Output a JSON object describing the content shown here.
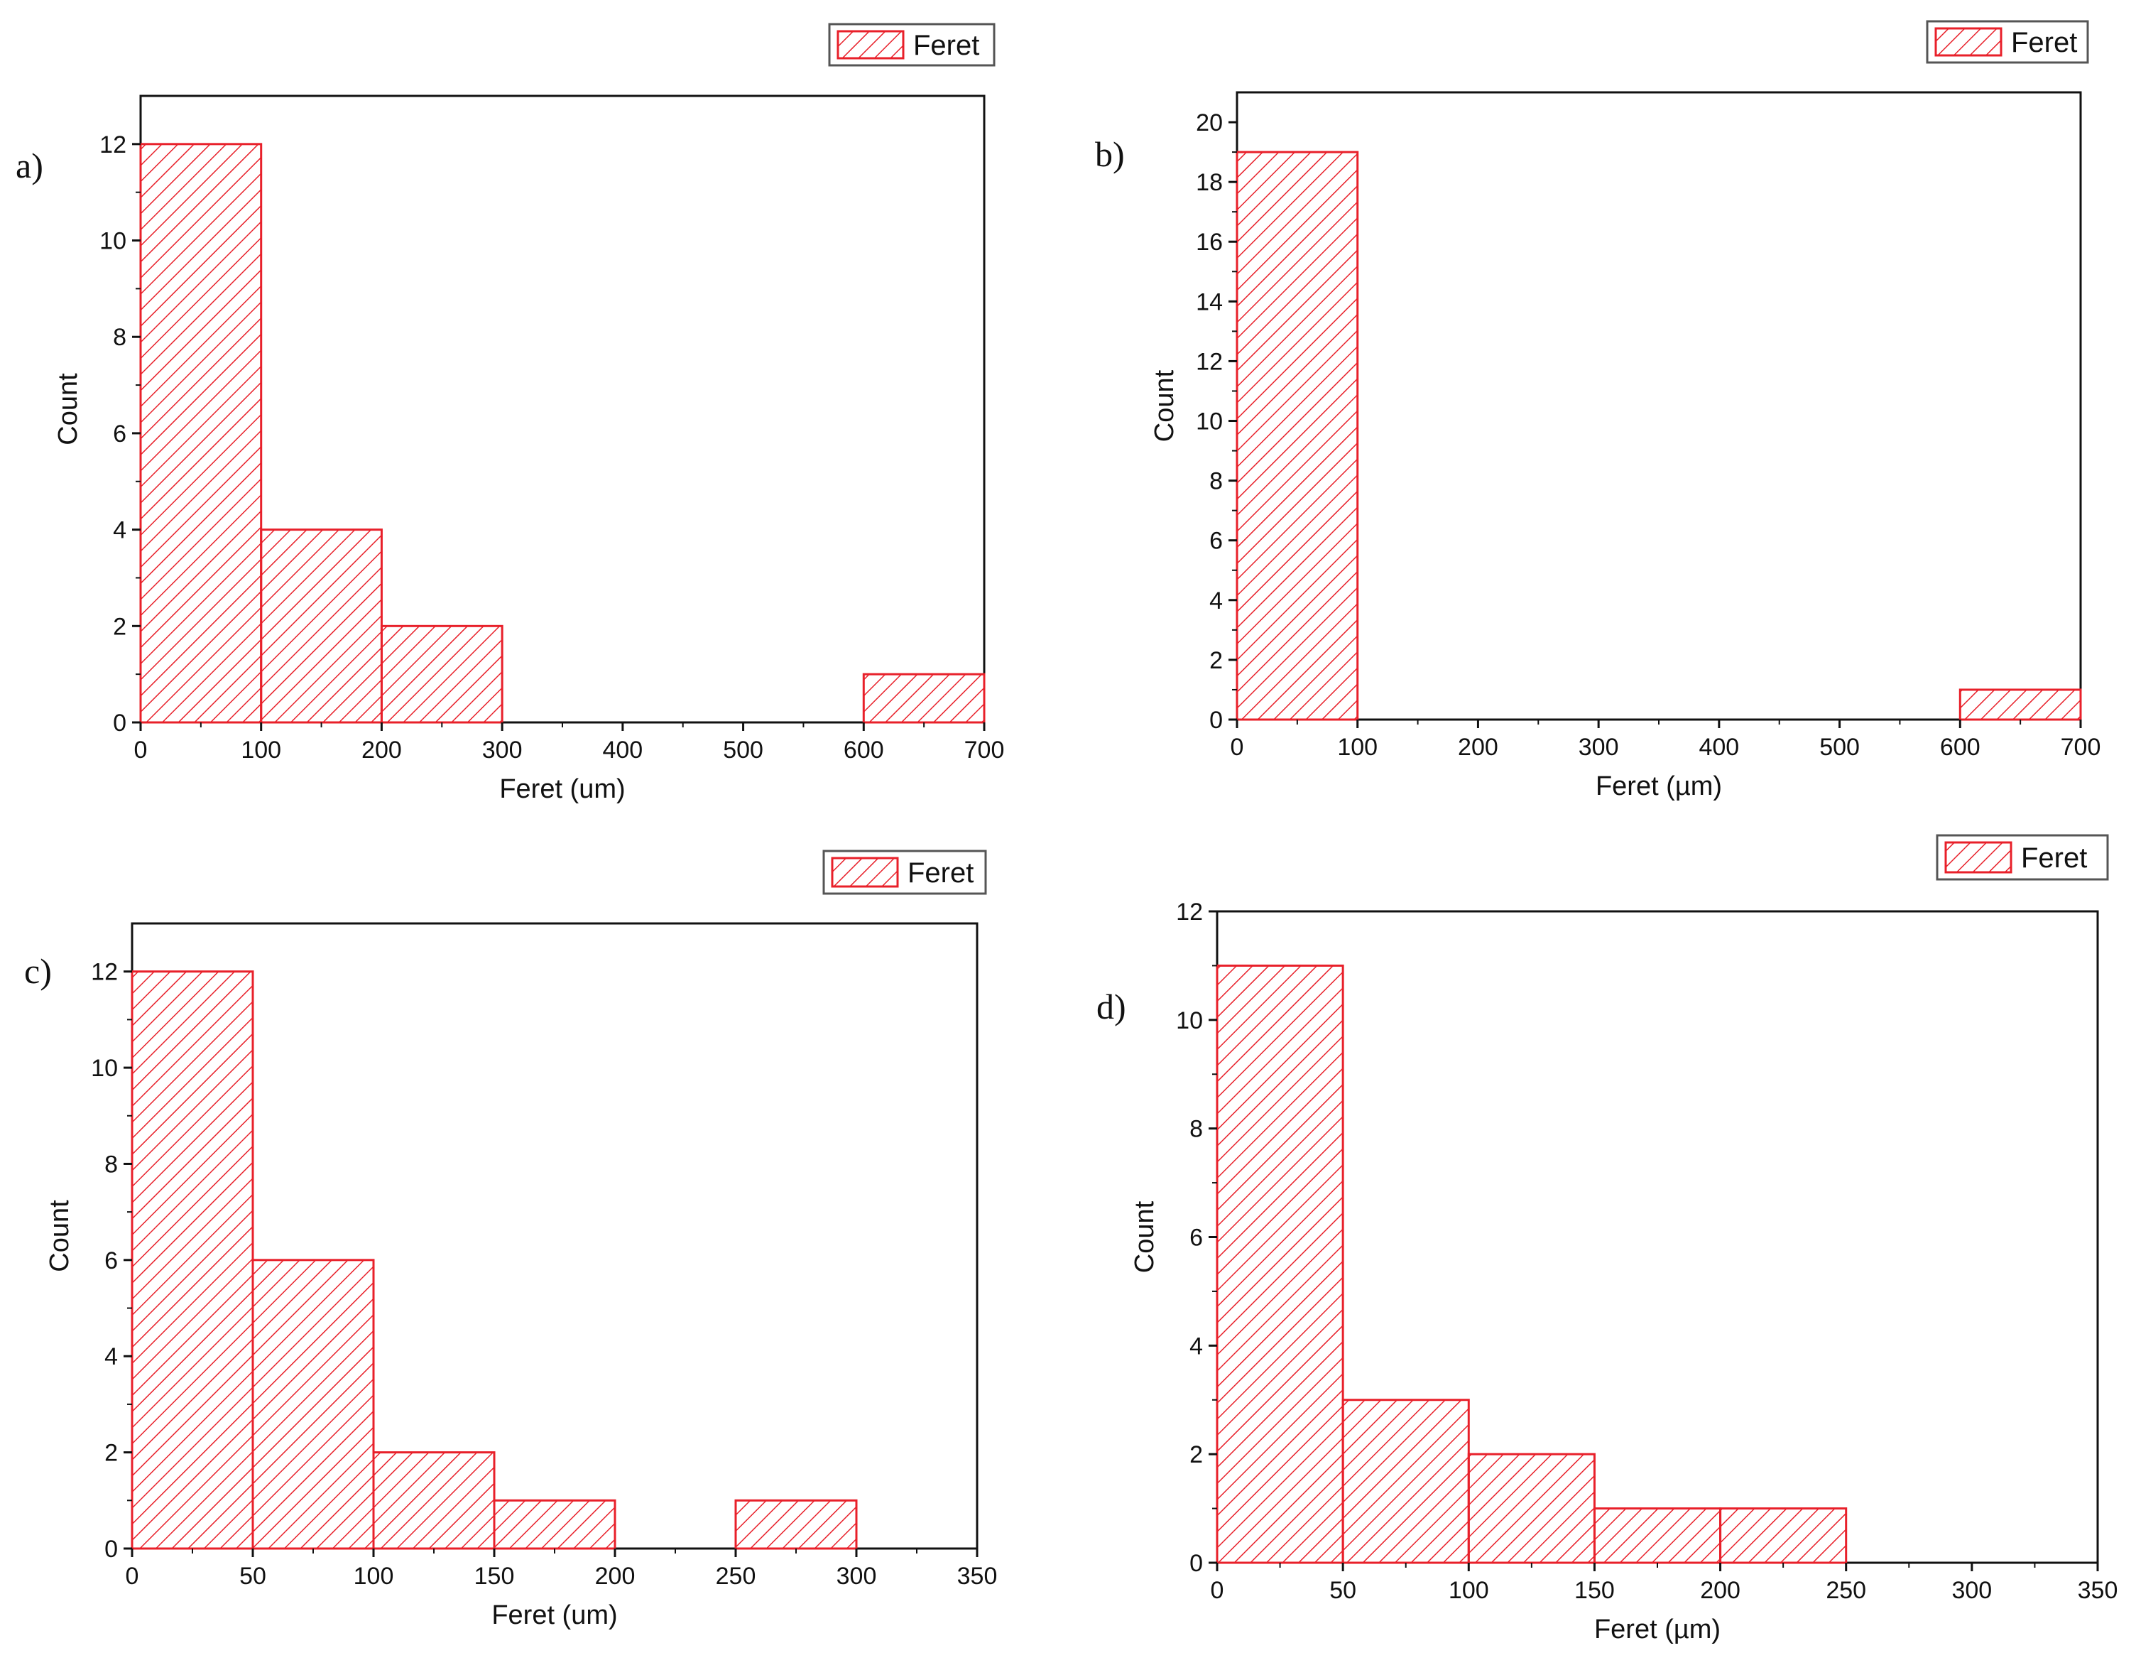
{
  "colors": {
    "bar_stroke": "#e8202a",
    "bar_hatch": "#e8202a",
    "axis": "#111111",
    "background": "#ffffff"
  },
  "chart_data": [
    {
      "panel": "a)",
      "type": "bar",
      "legend": "Feret",
      "xlabel": "Feret (um)",
      "ylabel": "Count",
      "xlim": [
        0,
        700
      ],
      "ylim": [
        0,
        13
      ],
      "xticks": [
        0,
        100,
        200,
        300,
        400,
        500,
        600,
        700
      ],
      "yticks": [
        0,
        2,
        4,
        6,
        8,
        10,
        12
      ],
      "bins": [
        {
          "start": 0,
          "end": 100,
          "count": 12
        },
        {
          "start": 100,
          "end": 200,
          "count": 4
        },
        {
          "start": 200,
          "end": 300,
          "count": 2
        },
        {
          "start": 600,
          "end": 700,
          "count": 1
        }
      ]
    },
    {
      "panel": "b)",
      "type": "bar",
      "legend": "Feret",
      "xlabel": "Feret (µm)",
      "ylabel": "Count",
      "xlim": [
        0,
        700
      ],
      "ylim": [
        0,
        21
      ],
      "xticks": [
        0,
        100,
        200,
        300,
        400,
        500,
        600,
        700
      ],
      "yticks": [
        0,
        2,
        4,
        6,
        8,
        10,
        12,
        14,
        16,
        18,
        20
      ],
      "bins": [
        {
          "start": 0,
          "end": 100,
          "count": 19
        },
        {
          "start": 600,
          "end": 700,
          "count": 1
        }
      ]
    },
    {
      "panel": "c)",
      "type": "bar",
      "legend": "Feret",
      "xlabel": "Feret (um)",
      "ylabel": "Count",
      "xlim": [
        0,
        350
      ],
      "ylim": [
        0,
        13
      ],
      "xticks": [
        0,
        50,
        100,
        150,
        200,
        250,
        300,
        350
      ],
      "yticks": [
        0,
        2,
        4,
        6,
        8,
        10,
        12
      ],
      "bins": [
        {
          "start": 0,
          "end": 50,
          "count": 12
        },
        {
          "start": 50,
          "end": 100,
          "count": 6
        },
        {
          "start": 100,
          "end": 150,
          "count": 2
        },
        {
          "start": 150,
          "end": 200,
          "count": 1
        },
        {
          "start": 250,
          "end": 300,
          "count": 1
        }
      ]
    },
    {
      "panel": "d)",
      "type": "bar",
      "legend": "Feret",
      "xlabel": "Feret (µm)",
      "ylabel": "Count",
      "xlim": [
        0,
        350
      ],
      "ylim": [
        0,
        12
      ],
      "xticks": [
        0,
        50,
        100,
        150,
        200,
        250,
        300,
        350
      ],
      "yticks": [
        0,
        2,
        4,
        6,
        8,
        10,
        12
      ],
      "bins": [
        {
          "start": 0,
          "end": 50,
          "count": 11
        },
        {
          "start": 50,
          "end": 100,
          "count": 3
        },
        {
          "start": 100,
          "end": 150,
          "count": 2
        },
        {
          "start": 150,
          "end": 200,
          "count": 1
        },
        {
          "start": 200,
          "end": 250,
          "count": 1
        }
      ]
    }
  ]
}
